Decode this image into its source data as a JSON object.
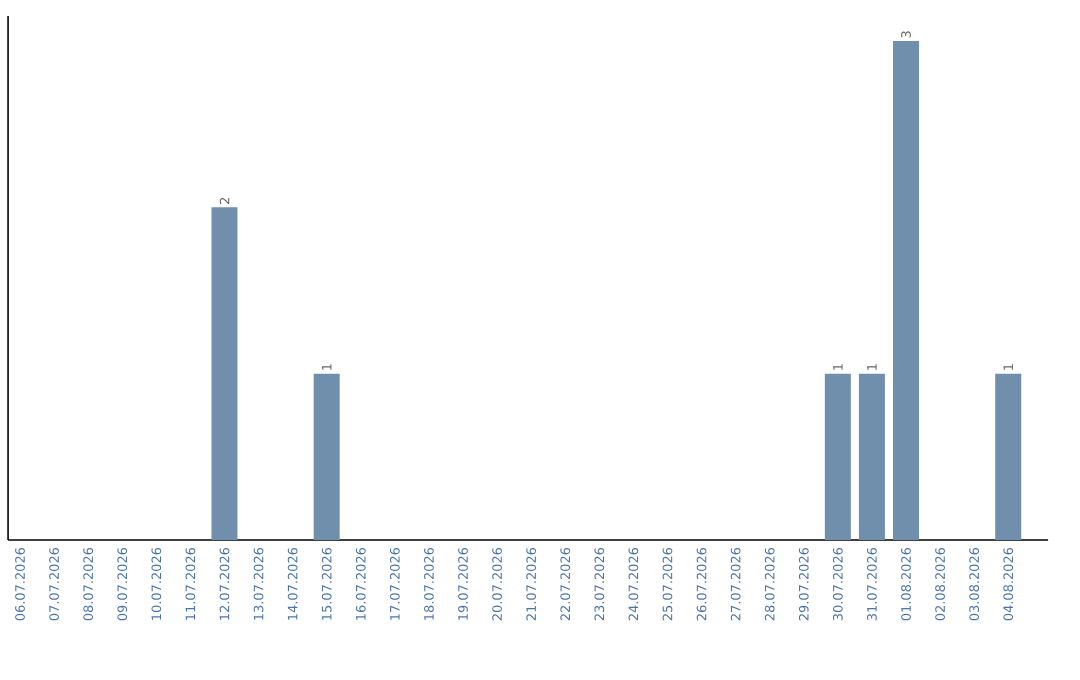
{
  "chart_data": {
    "type": "bar",
    "color": "#6f8fac",
    "categories": [
      "06.07.2026",
      "07.07.2026",
      "08.07.2026",
      "09.07.2026",
      "10.07.2026",
      "11.07.2026",
      "12.07.2026",
      "13.07.2026",
      "14.07.2026",
      "15.07.2026",
      "16.07.2026",
      "17.07.2026",
      "18.07.2026",
      "19.07.2026",
      "20.07.2026",
      "21.07.2026",
      "22.07.2026",
      "23.07.2026",
      "24.07.2026",
      "25.07.2026",
      "26.07.2026",
      "27.07.2026",
      "28.07.2026",
      "29.07.2026",
      "30.07.2026",
      "31.07.2026",
      "01.08.2026",
      "02.08.2026",
      "03.08.2026",
      "04.08.2026"
    ],
    "values": [
      0,
      0,
      0,
      0,
      0,
      0,
      2,
      0,
      0,
      1,
      0,
      0,
      0,
      0,
      0,
      0,
      0,
      0,
      0,
      0,
      0,
      0,
      0,
      0,
      1,
      1,
      3,
      0,
      0,
      1
    ],
    "value_labels": [
      null,
      null,
      null,
      null,
      null,
      null,
      "2",
      null,
      null,
      "1",
      null,
      null,
      null,
      null,
      null,
      null,
      null,
      null,
      null,
      null,
      null,
      null,
      null,
      null,
      "1",
      "1",
      "3",
      null,
      null,
      "1"
    ]
  }
}
